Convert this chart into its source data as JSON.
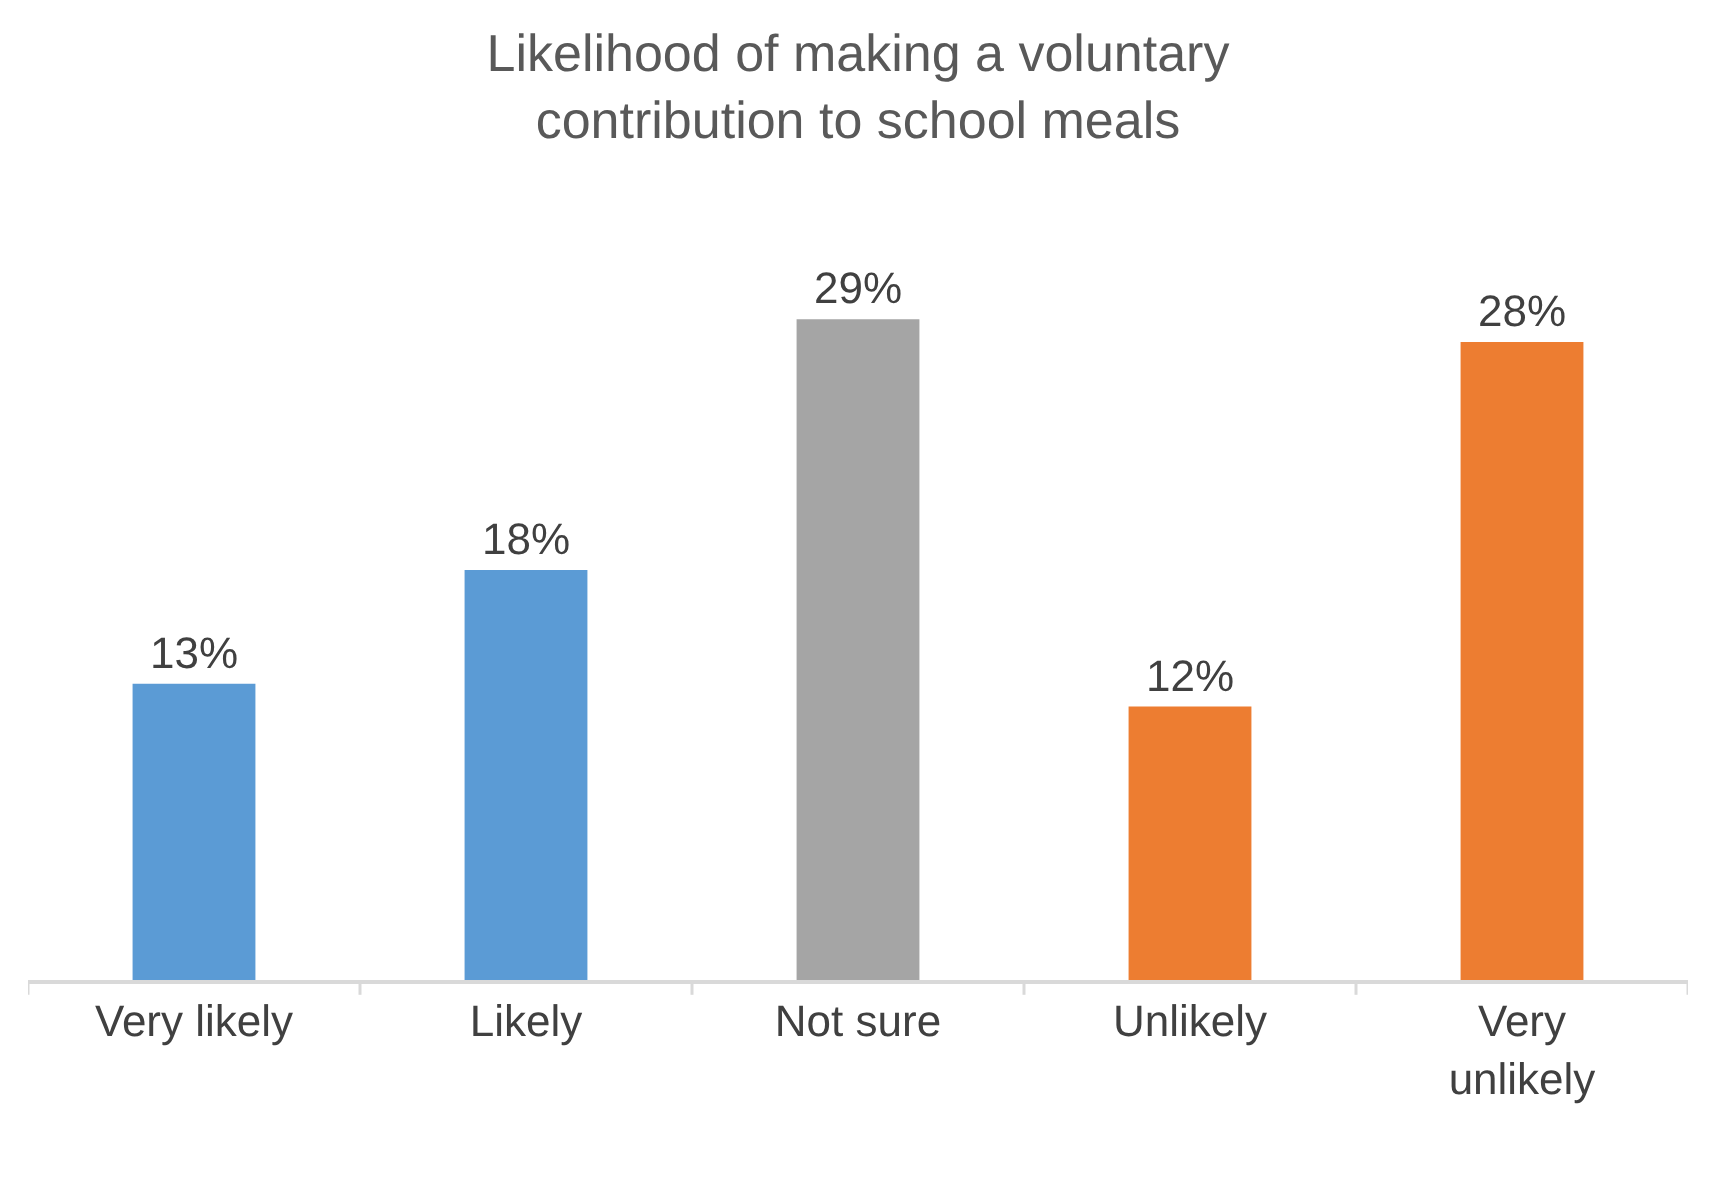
{
  "chart_data": {
    "type": "bar",
    "title": "Likelihood of making a voluntary contribution to school meals",
    "categories": [
      "Very likely",
      "Likely",
      "Not sure",
      "Unlikely",
      "Very unlikely"
    ],
    "values": [
      13,
      18,
      29,
      12,
      28
    ],
    "value_labels": [
      "13%",
      "18%",
      "29%",
      "12%",
      "28%"
    ],
    "colors": [
      "#5b9bd5",
      "#5b9bd5",
      "#a5a5a5",
      "#ed7d31",
      "#ed7d31"
    ],
    "tick_labels": "x"
  }
}
